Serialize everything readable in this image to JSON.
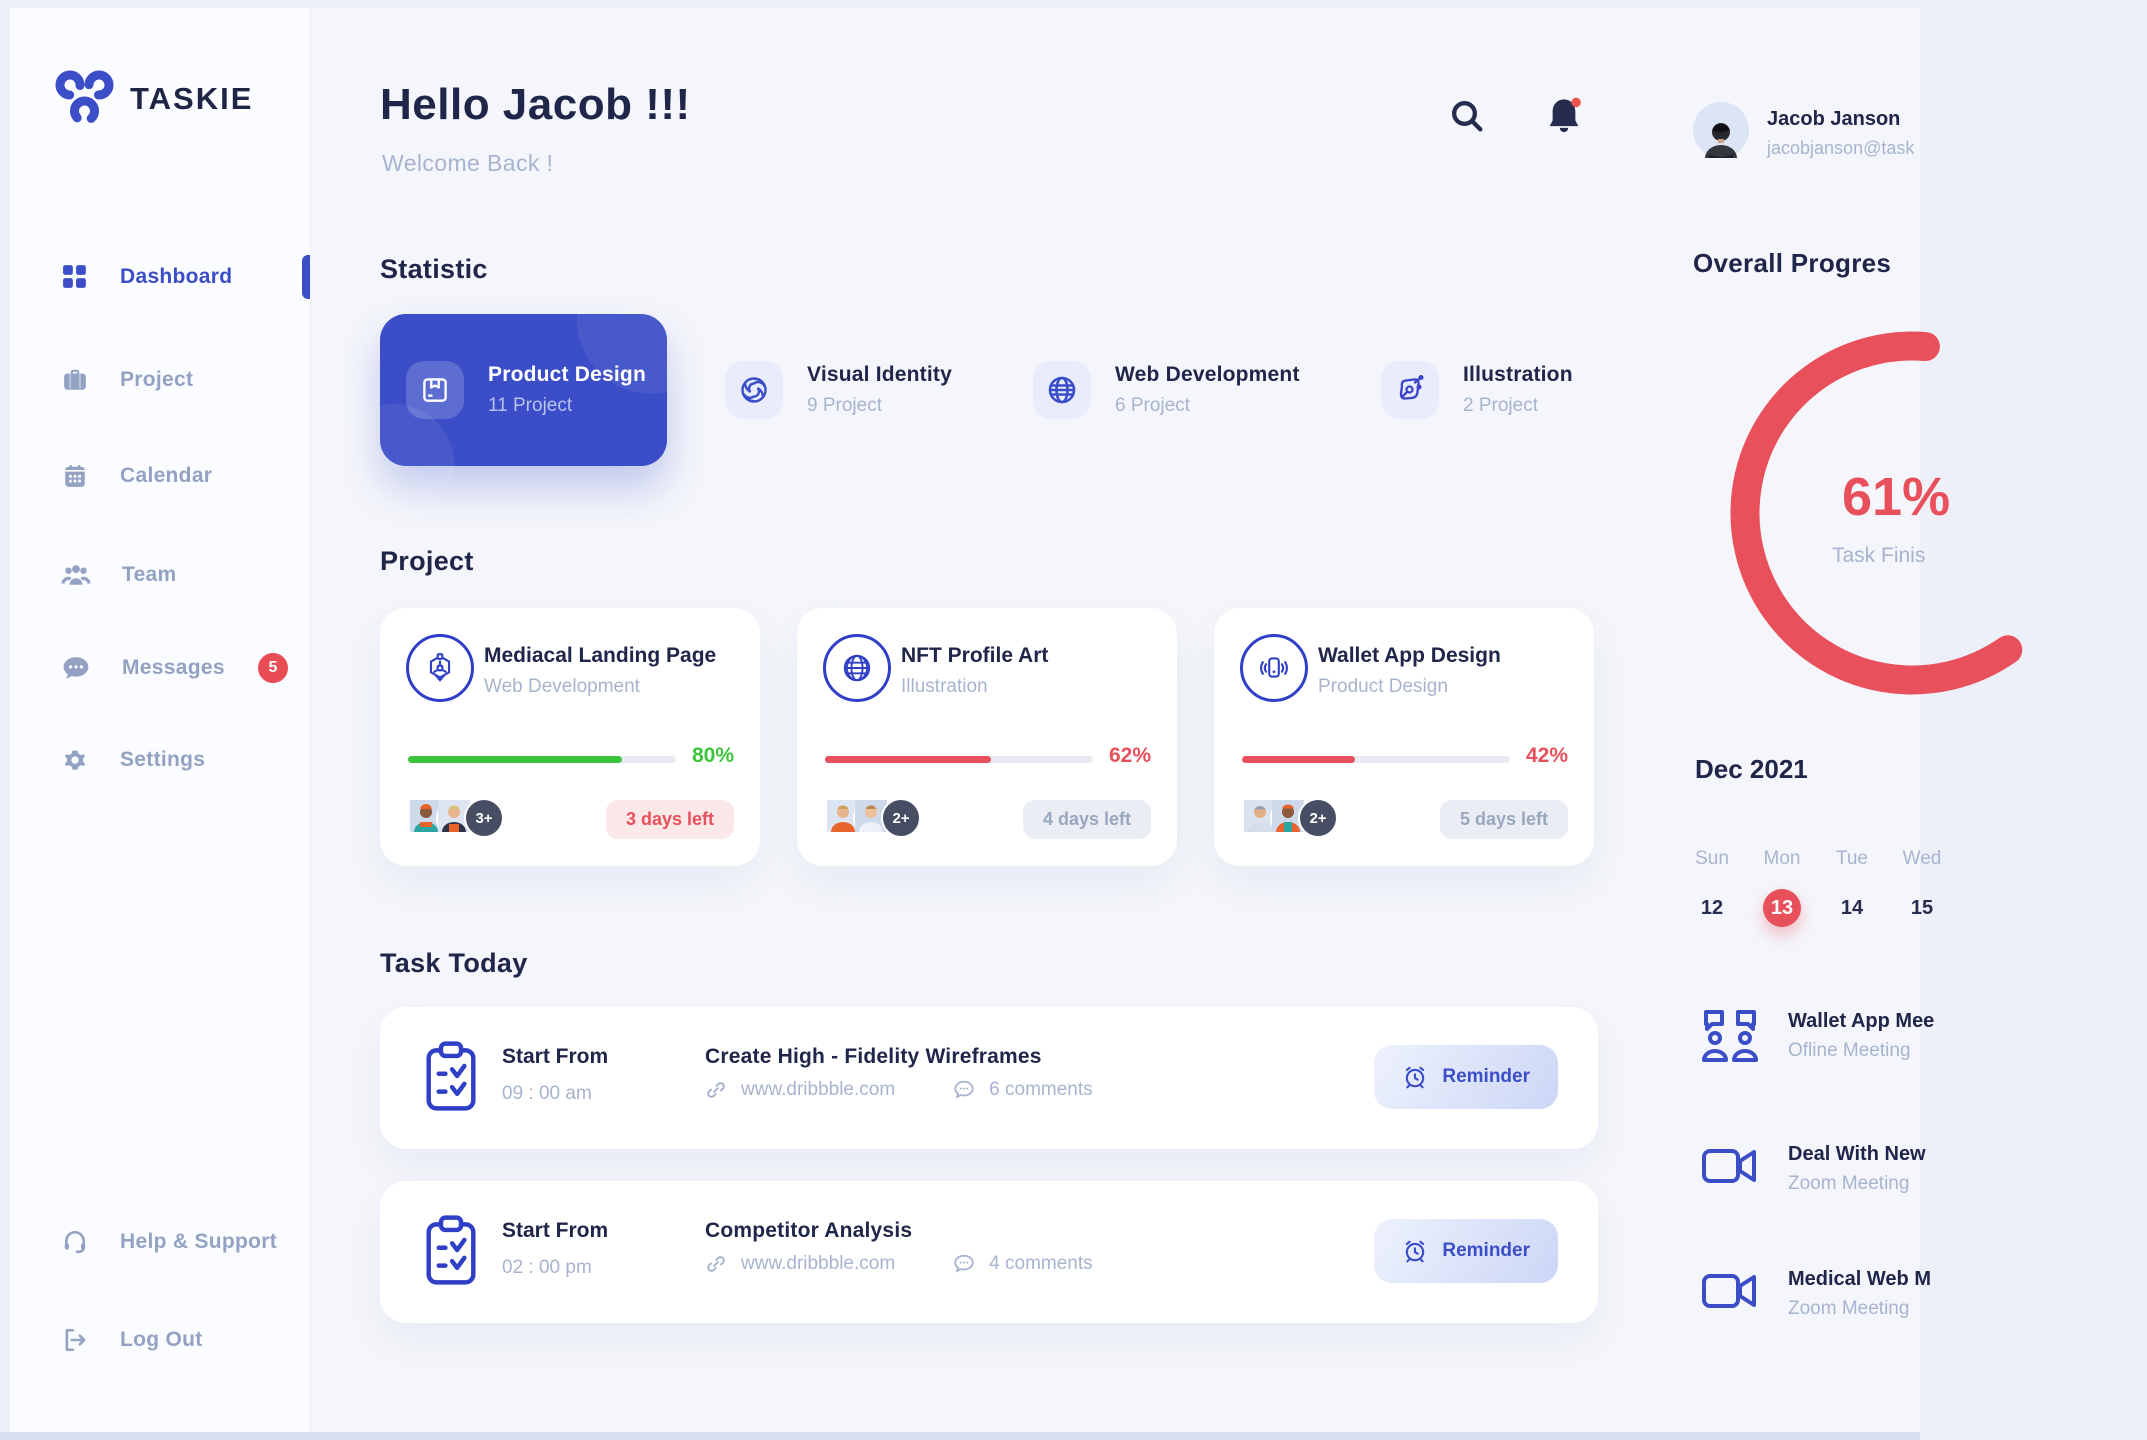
{
  "colors": {
    "accent": "#3b4ec8",
    "navy": "#20264a",
    "muted": "#a7b4cf",
    "red": "#e8505b",
    "green": "#3cc53c",
    "badge_red": "#e84c55"
  },
  "brand": {
    "name": "TASKIE"
  },
  "sidebar": {
    "items": [
      {
        "label": "Dashboard",
        "icon": "dashboard-grid-icon",
        "active": true
      },
      {
        "label": "Project",
        "icon": "briefcase-icon"
      },
      {
        "label": "Calendar",
        "icon": "calendar-icon"
      },
      {
        "label": "Team",
        "icon": "team-icon"
      },
      {
        "label": "Messages",
        "icon": "chat-icon",
        "badge": "5"
      },
      {
        "label": "Settings",
        "icon": "gear-icon"
      }
    ],
    "footer_items": [
      {
        "label": "Help & Support",
        "icon": "headset-icon"
      },
      {
        "label": "Log Out",
        "icon": "logout-icon"
      }
    ]
  },
  "header": {
    "greeting": "Hello Jacob !!!",
    "welcome": "Welcome Back !"
  },
  "statistic": {
    "title": "Statistic",
    "cards": [
      {
        "label": "Product Design",
        "count": "11 Project",
        "icon": "package-icon",
        "highlight": true
      },
      {
        "label": "Visual Identity",
        "count": "9 Project",
        "icon": "swirl-icon"
      },
      {
        "label": "Web Development",
        "count": "6 Project",
        "icon": "globe-icon"
      },
      {
        "label": "Illustration",
        "count": "2 Project",
        "icon": "pen-nib-icon"
      }
    ]
  },
  "projects": {
    "title": "Project",
    "cards": [
      {
        "name": "Mediacal Landing Page",
        "category": "Web Development",
        "percent": 80,
        "percent_label": "80%",
        "status": "green",
        "days_left": "3 days left",
        "more": "3+",
        "icon": "hex-node-icon"
      },
      {
        "name": "NFT Profile Art",
        "category": "Illustration",
        "percent": 62,
        "percent_label": "62%",
        "status": "red",
        "days_left": "4 days left",
        "more": "2+",
        "icon": "globe-wire-icon"
      },
      {
        "name": "Wallet App Design",
        "category": "Product Design",
        "percent": 42,
        "percent_label": "42%",
        "status": "red",
        "days_left": "5 days left",
        "more": "2+",
        "icon": "phone-vibrate-icon"
      }
    ]
  },
  "tasks": {
    "title": "Task Today",
    "reminder_label": "Reminder",
    "rows": [
      {
        "start_label": "Start From",
        "time": "09 : 00 am",
        "title": "Create High - Fidelity Wireframes",
        "link": "www.dribbble.com",
        "comments": "6 comments"
      },
      {
        "start_label": "Start From",
        "time": "02 : 00 pm",
        "title": "Competitor Analysis",
        "link": "www.dribbble.com",
        "comments": "4 comments"
      }
    ]
  },
  "profile": {
    "name": "Jacob Janson",
    "email": "jacobjanson@task"
  },
  "overall": {
    "title": "Overall Progres",
    "value": 61,
    "percent_label": "61%",
    "caption": "Task Finis"
  },
  "calendar": {
    "month": "Dec 2021",
    "day_headers": [
      "Sun",
      "Mon",
      "Tue",
      "Wed"
    ],
    "dates": [
      {
        "label": "12"
      },
      {
        "label": "13",
        "active": true
      },
      {
        "label": "14"
      },
      {
        "label": "15"
      }
    ]
  },
  "meetings": [
    {
      "title": "Wallet App Mee",
      "subtitle": "Ofline Meeting",
      "icon": "discussion-icon"
    },
    {
      "title": "Deal With New",
      "subtitle": "Zoom Meeting",
      "icon": "video-camera-icon"
    },
    {
      "title": "Medical Web M",
      "subtitle": "Zoom Meeting",
      "icon": "video-camera-icon"
    }
  ]
}
